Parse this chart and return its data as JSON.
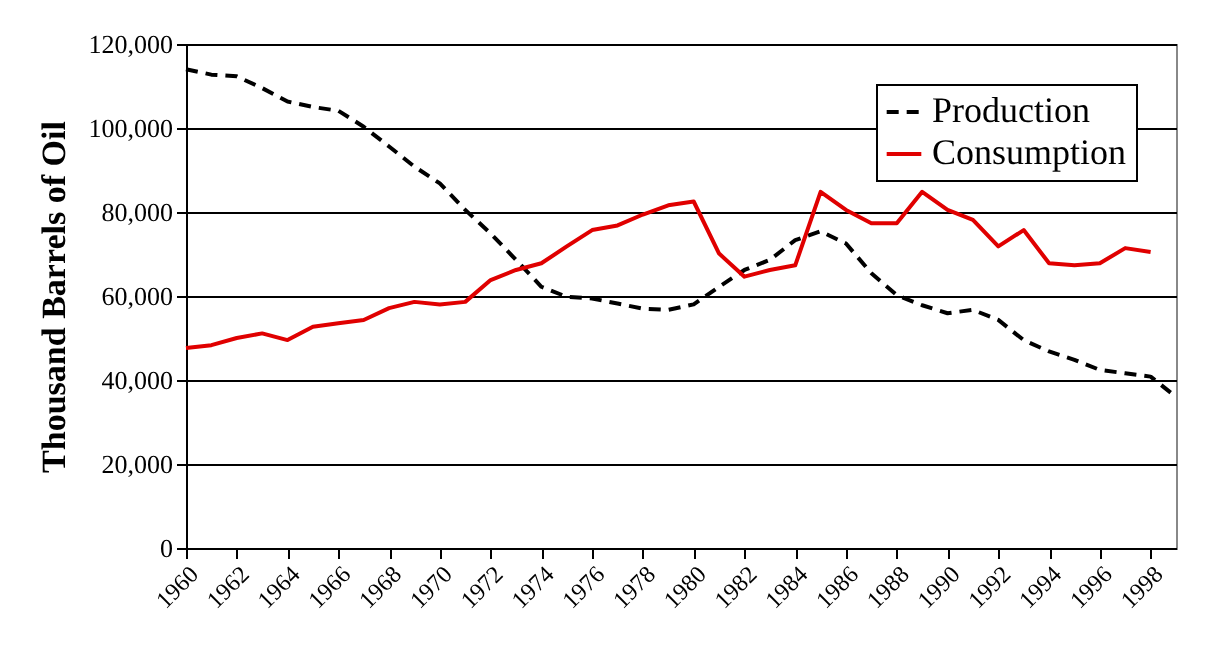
{
  "chart_data": {
    "type": "line",
    "ylabel": "Thousand Barrels of Oil",
    "x": [
      1960,
      1961,
      1962,
      1963,
      1964,
      1965,
      1966,
      1967,
      1968,
      1969,
      1970,
      1971,
      1972,
      1973,
      1974,
      1975,
      1976,
      1977,
      1978,
      1979,
      1980,
      1981,
      1982,
      1983,
      1984,
      1985,
      1986,
      1987,
      1988,
      1989,
      1990,
      1991,
      1992,
      1993,
      1994,
      1995,
      1996,
      1997,
      1998,
      1999
    ],
    "xlim": [
      1960,
      1999
    ],
    "xticks": [
      1960,
      1962,
      1964,
      1966,
      1968,
      1970,
      1972,
      1974,
      1976,
      1978,
      1980,
      1982,
      1984,
      1986,
      1988,
      1990,
      1992,
      1994,
      1996,
      1998
    ],
    "ylim": [
      0,
      120000
    ],
    "yticks": [
      0,
      {
        "value": 20000,
        "label": "20,000"
      },
      {
        "value": 40000,
        "label": "40,000"
      },
      {
        "value": 60000,
        "label": "60,000"
      },
      {
        "value": 80000,
        "label": "80,000"
      },
      {
        "value": 100000,
        "label": "100,000"
      },
      {
        "value": 120000,
        "label": "120,000"
      }
    ],
    "grid": "y",
    "legend": "top right",
    "marker": "none",
    "series": [
      {
        "name": "Production",
        "color": "#000000",
        "line_style": "dashed",
        "values": [
          114000,
          112700,
          112300,
          109500,
          106300,
          105000,
          104100,
          100300,
          95600,
          90800,
          86800,
          80500,
          74900,
          68600,
          62200,
          59800,
          59400,
          58200,
          57000,
          56700,
          58000,
          62200,
          66200,
          68600,
          73300,
          75400,
          72500,
          65400,
          60200,
          57800,
          55900,
          56700,
          54300,
          49500,
          46800,
          44800,
          42400,
          41600,
          40800,
          36000
        ]
      },
      {
        "name": "Consumption",
        "color": "#e00000",
        "line_style": "solid",
        "values": [
          47600,
          48300,
          50000,
          51100,
          49500,
          52700,
          53500,
          54300,
          57100,
          58600,
          58000,
          58600,
          63800,
          66200,
          67800,
          71800,
          75700,
          76800,
          79400,
          81600,
          82500,
          70100,
          64600,
          66200,
          67300,
          84800,
          80500,
          77300,
          77300,
          84800,
          80500,
          78100,
          71800,
          75700,
          67800,
          67300,
          67800,
          71400,
          70500,
          null
        ]
      }
    ]
  }
}
